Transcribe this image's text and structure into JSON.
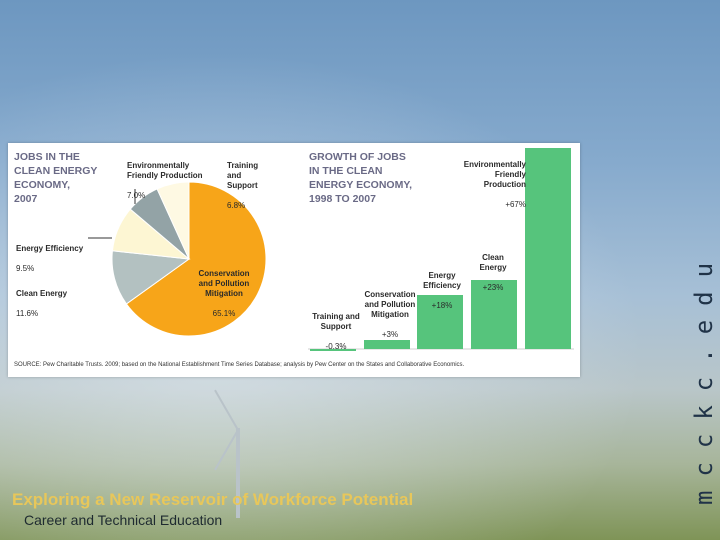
{
  "slide": {
    "vertical_text": "mcckc.edu",
    "title": "Exploring a New Reservoir of Workforce Potential",
    "subtitle": "Career and Technical Education",
    "title_color": "#e8c75a"
  },
  "source_note": "SOURCE: Pew Charitable Trusts. 2009; based on the National Establishment Time Series Database; analysis by Pew Center on the States and Collaborative Economics.",
  "chart_data": [
    {
      "type": "pie",
      "title": "JOBS IN THE\nCLEAN ENERGY\nECONOMY,\n2007",
      "slices": [
        {
          "label": "Conservation and Pollution Mitigation",
          "value": 65.1,
          "display": "65.1%",
          "color": "#f7a519"
        },
        {
          "label": "Clean Energy",
          "value": 11.6,
          "display": "11.6%",
          "color": "#b3c1c1"
        },
        {
          "label": "Energy Efficiency",
          "value": 9.5,
          "display": "9.5%",
          "color": "#fdf6d3"
        },
        {
          "label": "Environmentally Friendly Production",
          "value": 7.0,
          "display": "7.0%",
          "color": "#93a3a6"
        },
        {
          "label": "Training and Support",
          "value": 6.8,
          "display": "6.8%",
          "color": "#fef9e3"
        }
      ]
    },
    {
      "type": "bar",
      "title": "GROWTH OF JOBS\nIN THE CLEAN\nENERGY ECONOMY,\n1998 TO 2007",
      "categories": [
        "Training and Support",
        "Conservation and Pollution Mitigation",
        "Energy Efficiency",
        "Clean Energy",
        "Environmentally Friendly Production"
      ],
      "values": [
        -0.3,
        3,
        18,
        23,
        67
      ],
      "display": [
        "-0.3%",
        "+3%",
        "+18%",
        "+23%",
        "+67%"
      ],
      "color": "#56c47c"
    }
  ]
}
